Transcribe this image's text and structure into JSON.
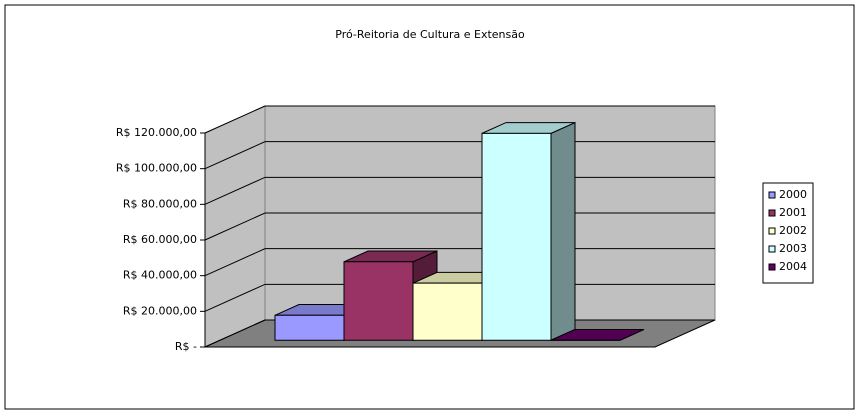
{
  "chart_data": {
    "type": "bar3d",
    "title": "Pró-Reitoria de Cultura e Extensão",
    "series": [
      {
        "name": "2000",
        "color": "#9999ff",
        "values": [
          14000
        ]
      },
      {
        "name": "2001",
        "color": "#993366",
        "values": [
          44000
        ]
      },
      {
        "name": "2002",
        "color": "#ffffcc",
        "values": [
          32000
        ]
      },
      {
        "name": "2003",
        "color": "#ccffff",
        "values": [
          116000
        ]
      },
      {
        "name": "2004",
        "color": "#660066",
        "values": [
          0
        ]
      }
    ],
    "ylim": [
      0,
      120000
    ],
    "yticks": [
      {
        "value": 0,
        "label": "R$ -"
      },
      {
        "value": 20000,
        "label": "R$ 20.000,00"
      },
      {
        "value": 40000,
        "label": "R$ 40.000,00"
      },
      {
        "value": 60000,
        "label": "R$ 60.000,00"
      },
      {
        "value": 80000,
        "label": "R$ 80.000,00"
      },
      {
        "value": 100000,
        "label": "R$ 100.000,00"
      },
      {
        "value": 120000,
        "label": "R$ 120.000,00"
      }
    ],
    "grid": true,
    "legend": "right"
  }
}
